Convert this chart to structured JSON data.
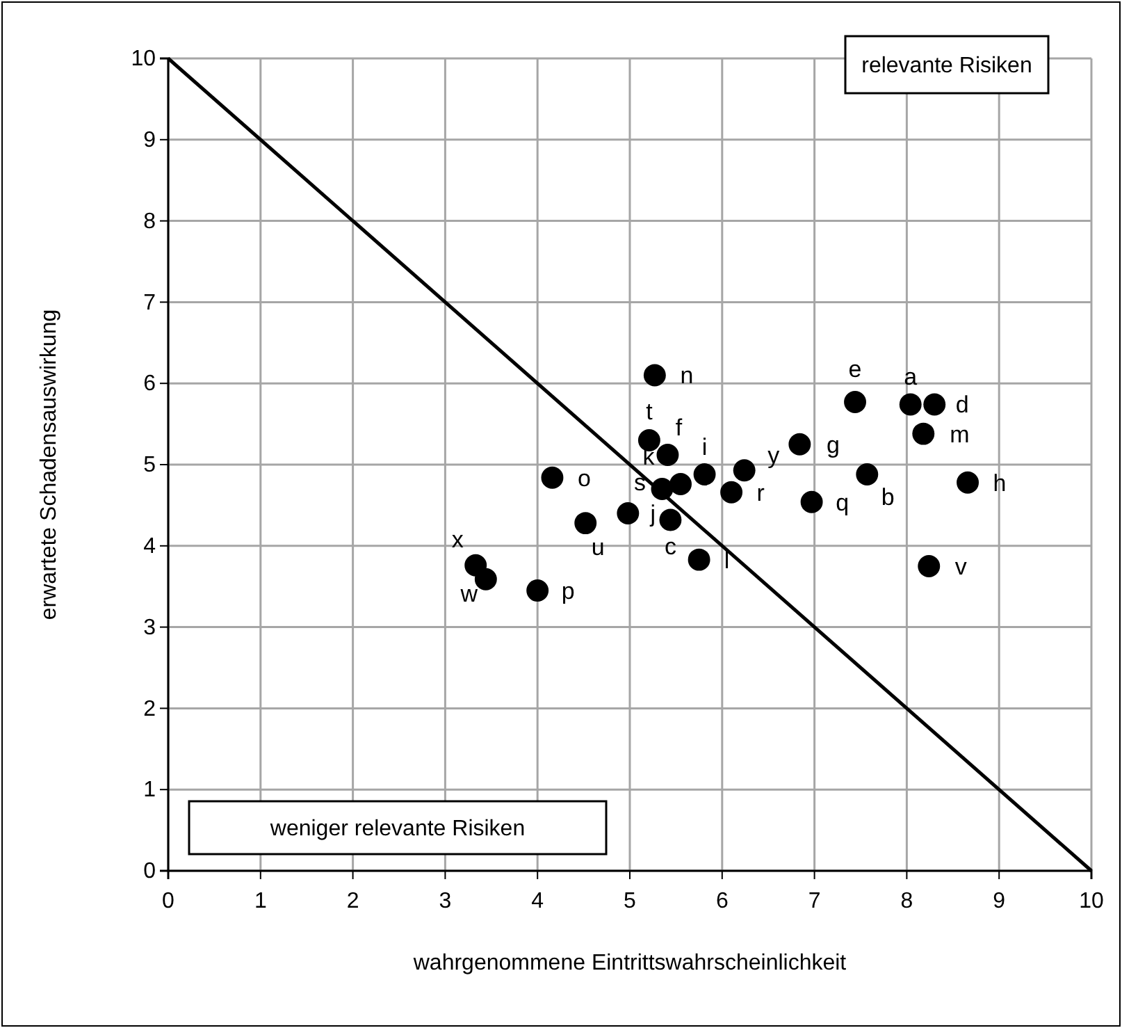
{
  "chart_data": {
    "type": "scatter",
    "xlabel": "wahrgenommene Eintrittswahrscheinlichkeit",
    "ylabel": "erwartete Schadensauswirkung",
    "xlim": [
      0,
      10
    ],
    "ylim": [
      0,
      10
    ],
    "xticks": [
      0,
      1,
      2,
      3,
      4,
      5,
      6,
      7,
      8,
      9,
      10
    ],
    "yticks": [
      0,
      1,
      2,
      3,
      4,
      5,
      6,
      7,
      8,
      9,
      10
    ],
    "grid": true,
    "marker": "circle",
    "annotations": [
      "relevante Risiken",
      "weniger relevante Risiken"
    ],
    "series": [
      {
        "color": "#000000",
        "x": [
          8.04,
          7.57,
          5.44,
          8.3,
          7.44,
          5.41,
          6.84,
          8.66,
          5.81,
          4.98,
          5.55,
          5.75,
          8.18,
          5.27,
          4.16,
          4.0,
          6.97,
          6.1,
          5.35,
          5.21,
          4.52,
          8.24,
          3.44,
          3.33,
          6.24
        ],
        "values": [
          5.74,
          4.88,
          4.32,
          5.74,
          5.77,
          5.12,
          5.25,
          4.78,
          4.88,
          4.4,
          4.76,
          3.83,
          5.38,
          6.1,
          4.84,
          3.45,
          4.54,
          4.66,
          4.7,
          5.3,
          4.28,
          3.75,
          3.59,
          3.76,
          4.93
        ],
        "value_labels": [
          "a",
          "b",
          "c",
          "d",
          "e",
          "f",
          "g",
          "h",
          "i",
          "j",
          "k",
          "l",
          "m",
          "n",
          "o",
          "p",
          "q",
          "r",
          "s",
          "t",
          "u",
          "v",
          "w",
          "x",
          "y"
        ]
      },
      {
        "type": "line",
        "color": "#000000",
        "x": [
          0,
          10
        ],
        "values": [
          10,
          0
        ],
        "marker": "none"
      }
    ]
  }
}
